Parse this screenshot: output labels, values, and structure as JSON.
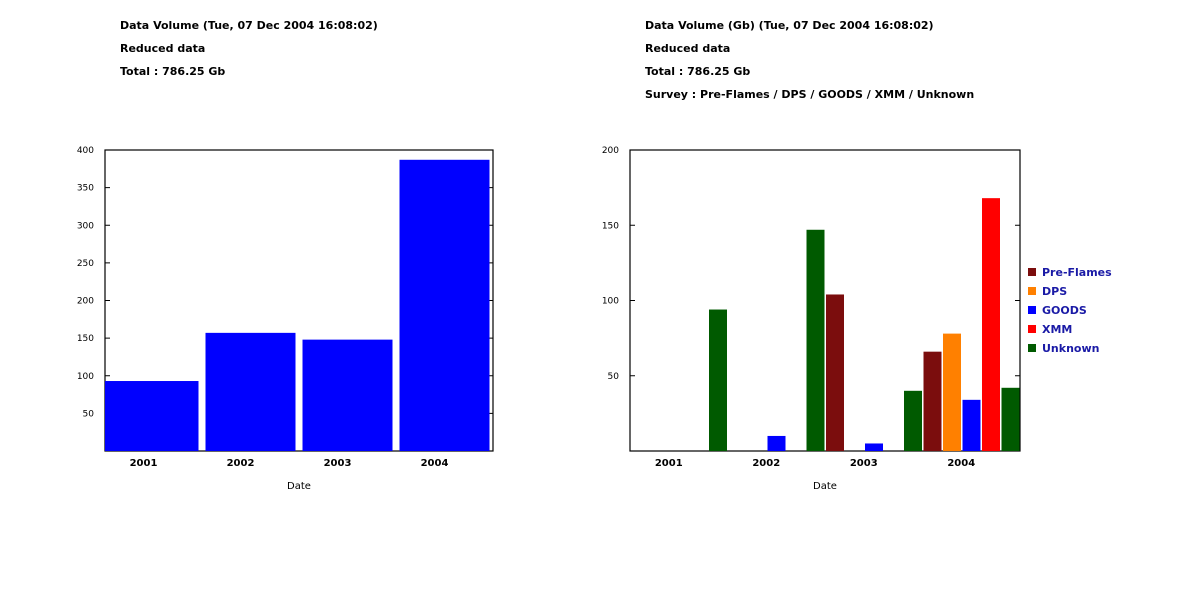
{
  "chart_data": [
    {
      "type": "bar",
      "header_lines": [
        "Data Volume  (Tue, 07 Dec 2004 16:08:02)",
        "Reduced data",
        "Total : 786.25 Gb"
      ],
      "xlabel": "Date",
      "ylabel": "",
      "categories": [
        "2001",
        "2002",
        "2003",
        "2004"
      ],
      "values": [
        93,
        157,
        148,
        387
      ],
      "ylim": [
        0,
        400
      ],
      "yticks": [
        50,
        100,
        150,
        200,
        250,
        300,
        350,
        400
      ],
      "bar_color": "#0000ff",
      "grid": false
    },
    {
      "type": "bar",
      "header_lines": [
        "Data Volume (Gb) (Tue, 07 Dec 2004 16:08:02)",
        "Reduced data",
        "Total : 786.25 Gb",
        "Survey : Pre-Flames / DPS / GOODS / XMM / Unknown"
      ],
      "xlabel": "Date",
      "ylabel": "",
      "categories": [
        "2001",
        "2002",
        "2003",
        "2004"
      ],
      "ylim": [
        0,
        200
      ],
      "yticks": [
        50,
        100,
        150,
        200
      ],
      "legend_position": "right",
      "grid": false,
      "series": [
        {
          "name": "Pre-Flames",
          "color": "#7b0d0d",
          "values": [
            0,
            0,
            104,
            66
          ]
        },
        {
          "name": "DPS",
          "color": "#ff8000",
          "values": [
            0,
            0,
            0,
            78
          ]
        },
        {
          "name": "GOODS",
          "color": "#0000ff",
          "values": [
            0,
            10,
            5,
            34
          ]
        },
        {
          "name": "XMM",
          "color": "#ff0000",
          "values": [
            0,
            0,
            0,
            168
          ]
        },
        {
          "name": "Unknown",
          "color": "#005a00",
          "values": [
            94,
            147,
            40,
            42
          ]
        }
      ]
    }
  ]
}
